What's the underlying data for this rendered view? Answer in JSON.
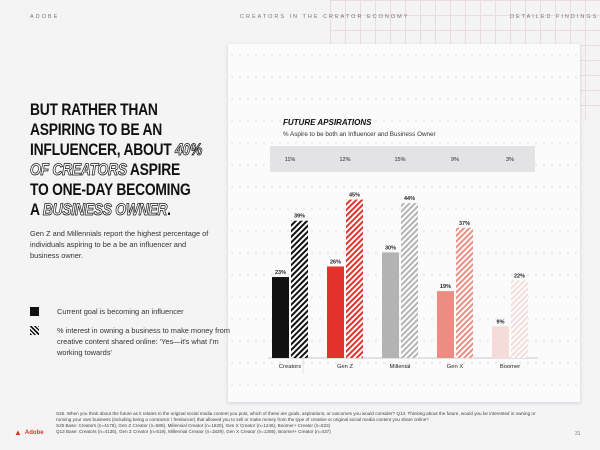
{
  "header": {
    "left": "ADOBE",
    "center": "CREATORS IN THE CREATOR ECONOMY",
    "right": "DETAILED FINDINGS"
  },
  "headline": {
    "l1": "BUT RATHER THAN",
    "l2": "ASPIRING TO BE AN",
    "l3a": "INFLUENCER, ABOUT ",
    "l3b": "40%",
    "l4a": "OF CREATORS",
    "l4b": " ASPIRE",
    "l5": "TO ONE-DAY BECOMING",
    "l6a": "A ",
    "l6b": "BUSINESS OWNER",
    "l6c": "."
  },
  "body": "Gen Z and Millennials report the highest percentage of individuals aspiring to be a be an influencer and business owner.",
  "legend": {
    "solid": "Current goal is becoming an influencer",
    "hatched": "% interest in owning a business to make money from creative content shared online: 'Yes—it's what I'm working towards'"
  },
  "chart_data": {
    "type": "bar",
    "title": "FUTURE APSIRATIONS",
    "subtitle": "% Aspire to be both an Influencer and Business Owner",
    "categories": [
      "Creators",
      "Gen Z",
      "Millenial",
      "Gen X",
      "Boomer"
    ],
    "both_row": [
      "11%",
      "12%",
      "15%",
      "9%",
      "3%"
    ],
    "series": [
      {
        "name": "Current goal is becoming an influencer",
        "values": [
          23,
          26,
          30,
          19,
          9
        ],
        "style": "solid"
      },
      {
        "name": "% interest in owning a business to make money from creative content shared online",
        "values": [
          39,
          45,
          44,
          37,
          22
        ],
        "style": "hatched"
      }
    ],
    "colors": [
      "#111111",
      "#e3312b",
      "#b3b3b3",
      "#ec8d84",
      "#f5dcda"
    ],
    "ylim": [
      0,
      50
    ],
    "grid": true
  },
  "footnote": {
    "l1": "S25. When you think about the future as it relates to the original social media content you post, which of these are goals, aspirations, or outcomes you would consider? Q13. Thinking about the future, would you be interested in owning or running your own business (including being a contractor / freelancer) that allowed you to sell or make money from the type of creative or original social media content you share online?",
    "l2": "S25 Base: Creators (n=4178), Gen Z Creator (n=589), Millennial Creator (n=1820), Gen X Creator (n=1246), Boomer+ Creator (n=523)",
    "l3": "Q13 Base: Creators (n=4135), Gen Z Creator (n=619), Millennial Creator (n=1829), Gen X Creator (n=1356), Boomer+ Creator (n=437)"
  },
  "brand": "Adobe",
  "page": "31"
}
